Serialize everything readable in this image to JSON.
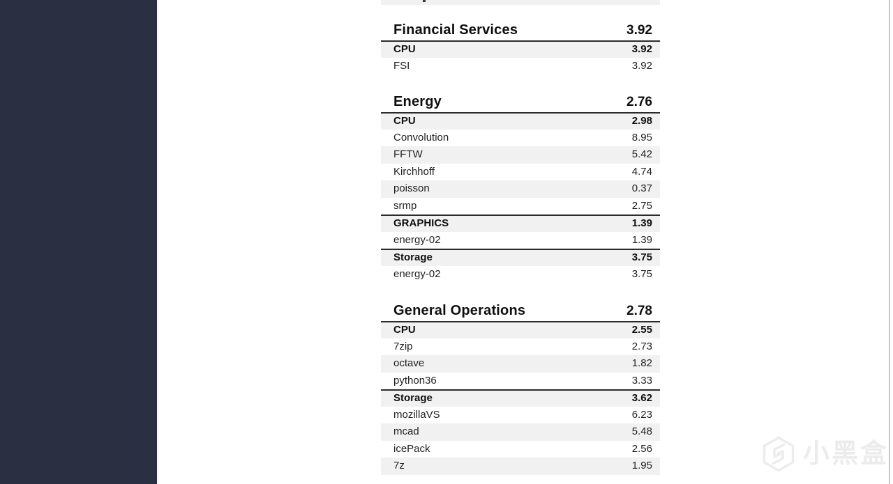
{
  "sections": [
    {
      "title": "Financial Services",
      "score": "3.92",
      "rows": [
        {
          "label": "CPU",
          "value": "3.92",
          "type": "category"
        },
        {
          "label": "FSI",
          "value": "3.92",
          "type": "item"
        }
      ]
    },
    {
      "title": "Energy",
      "score": "2.76",
      "rows": [
        {
          "label": "CPU",
          "value": "2.98",
          "type": "category"
        },
        {
          "label": "Convolution",
          "value": "8.95",
          "type": "item"
        },
        {
          "label": "FFTW",
          "value": "5.42",
          "type": "item"
        },
        {
          "label": "Kirchhoff",
          "value": "4.74",
          "type": "item"
        },
        {
          "label": "poisson",
          "value": "0.37",
          "type": "item"
        },
        {
          "label": "srmp",
          "value": "2.75",
          "type": "item"
        },
        {
          "label": "GRAPHICS",
          "value": "1.39",
          "type": "category"
        },
        {
          "label": "energy-02",
          "value": "1.39",
          "type": "item"
        },
        {
          "label": "Storage",
          "value": "3.75",
          "type": "category"
        },
        {
          "label": "energy-02",
          "value": "3.75",
          "type": "item"
        }
      ]
    },
    {
      "title": "General Operations",
      "score": "2.78",
      "rows": [
        {
          "label": "CPU",
          "value": "2.55",
          "type": "category"
        },
        {
          "label": "7zip",
          "value": "2.73",
          "type": "item"
        },
        {
          "label": "octave",
          "value": "1.82",
          "type": "item"
        },
        {
          "label": "python36",
          "value": "3.33",
          "type": "item"
        },
        {
          "label": "Storage",
          "value": "3.62",
          "type": "category"
        },
        {
          "label": "mozillaVS",
          "value": "6.23",
          "type": "item"
        },
        {
          "label": "mcad",
          "value": "5.48",
          "type": "item"
        },
        {
          "label": "icePack",
          "value": "2.56",
          "type": "item"
        },
        {
          "label": "7z",
          "value": "1.95",
          "type": "item"
        }
      ]
    }
  ],
  "watermark": {
    "text": "小黑盒",
    "logo_icon": "xiaoheihe-hexagon-logo"
  },
  "colors": {
    "sidebar": "#2a3042",
    "row_shade": "#f1f1f1",
    "rule_dark": "#2b2b2b",
    "watermark": "#ececec",
    "scrollbar_line": "#c7c7c7"
  }
}
